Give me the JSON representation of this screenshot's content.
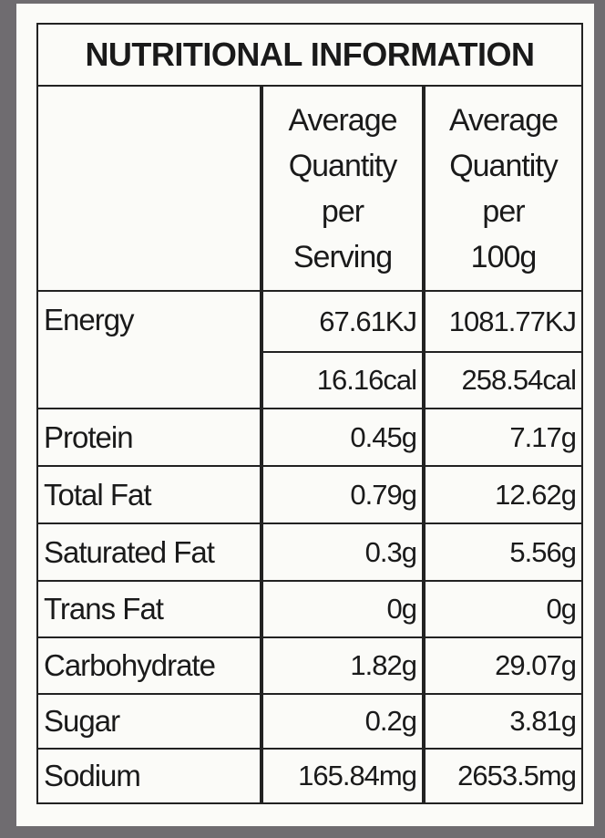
{
  "title": "NUTRITIONAL INFORMATION",
  "header": {
    "columns": [
      [
        "Average",
        "Quantity",
        "per",
        "Serving"
      ],
      [
        "Average",
        "Quantity",
        "per",
        "100g"
      ]
    ]
  },
  "rows": [
    {
      "label": "Energy",
      "values": [
        [
          "67.61KJ",
          "1081.77KJ"
        ],
        [
          "16.16cal",
          "258.54cal"
        ]
      ]
    },
    {
      "label": "Protein",
      "values": [
        [
          "0.45g",
          "7.17g"
        ]
      ]
    },
    {
      "label": "Total Fat",
      "values": [
        [
          "0.79g",
          "12.62g"
        ]
      ]
    },
    {
      "label": "Saturated Fat",
      "values": [
        [
          "0.3g",
          "5.56g"
        ]
      ]
    },
    {
      "label": "Trans Fat",
      "values": [
        [
          "0g",
          "0g"
        ]
      ]
    },
    {
      "label": "Carbohydrate",
      "values": [
        [
          "1.82g",
          "29.07g"
        ]
      ]
    },
    {
      "label": "Sugar",
      "values": [
        [
          "0.2g",
          "3.81g"
        ]
      ]
    },
    {
      "label": "Sodium",
      "values": [
        [
          "165.84mg",
          "2653.5mg"
        ]
      ]
    }
  ]
}
